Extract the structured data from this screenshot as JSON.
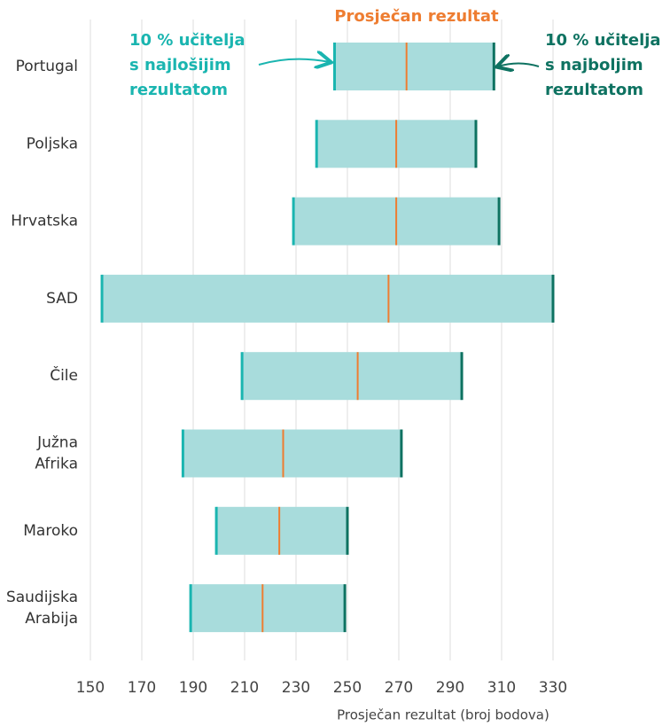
{
  "chart_data": {
    "type": "range_bar",
    "xlabel": "Prosječan rezultat (broj bodova)",
    "categories": [
      "Portugal",
      "Poljska",
      "Hrvatska",
      "SAD",
      "Čile",
      "Južna\nAfrika",
      "Maroko",
      "Saudijska\nArabija"
    ],
    "series": [
      {
        "name": "10 % učitelja\ns najlošijim\nrezultatom",
        "color": "#1ab5b0",
        "values": [
          245,
          238,
          229,
          154.5,
          209,
          186,
          199,
          189
        ]
      },
      {
        "name": "Prosječan rezultat",
        "color": "#ee7d31",
        "values": [
          273,
          269,
          269,
          266,
          254,
          225,
          223.5,
          217
        ]
      },
      {
        "name": "10 % učitelja\ns najboljim\nrezultatom",
        "color": "#0e7261",
        "values": [
          307,
          300,
          309,
          330,
          294.5,
          271,
          250,
          249
        ]
      }
    ],
    "bar_color": "#a8dcdc",
    "xlim": [
      150,
      330
    ],
    "xticks": [
      150,
      170,
      190,
      210,
      230,
      250,
      270,
      290,
      310,
      330
    ],
    "grid": true
  }
}
